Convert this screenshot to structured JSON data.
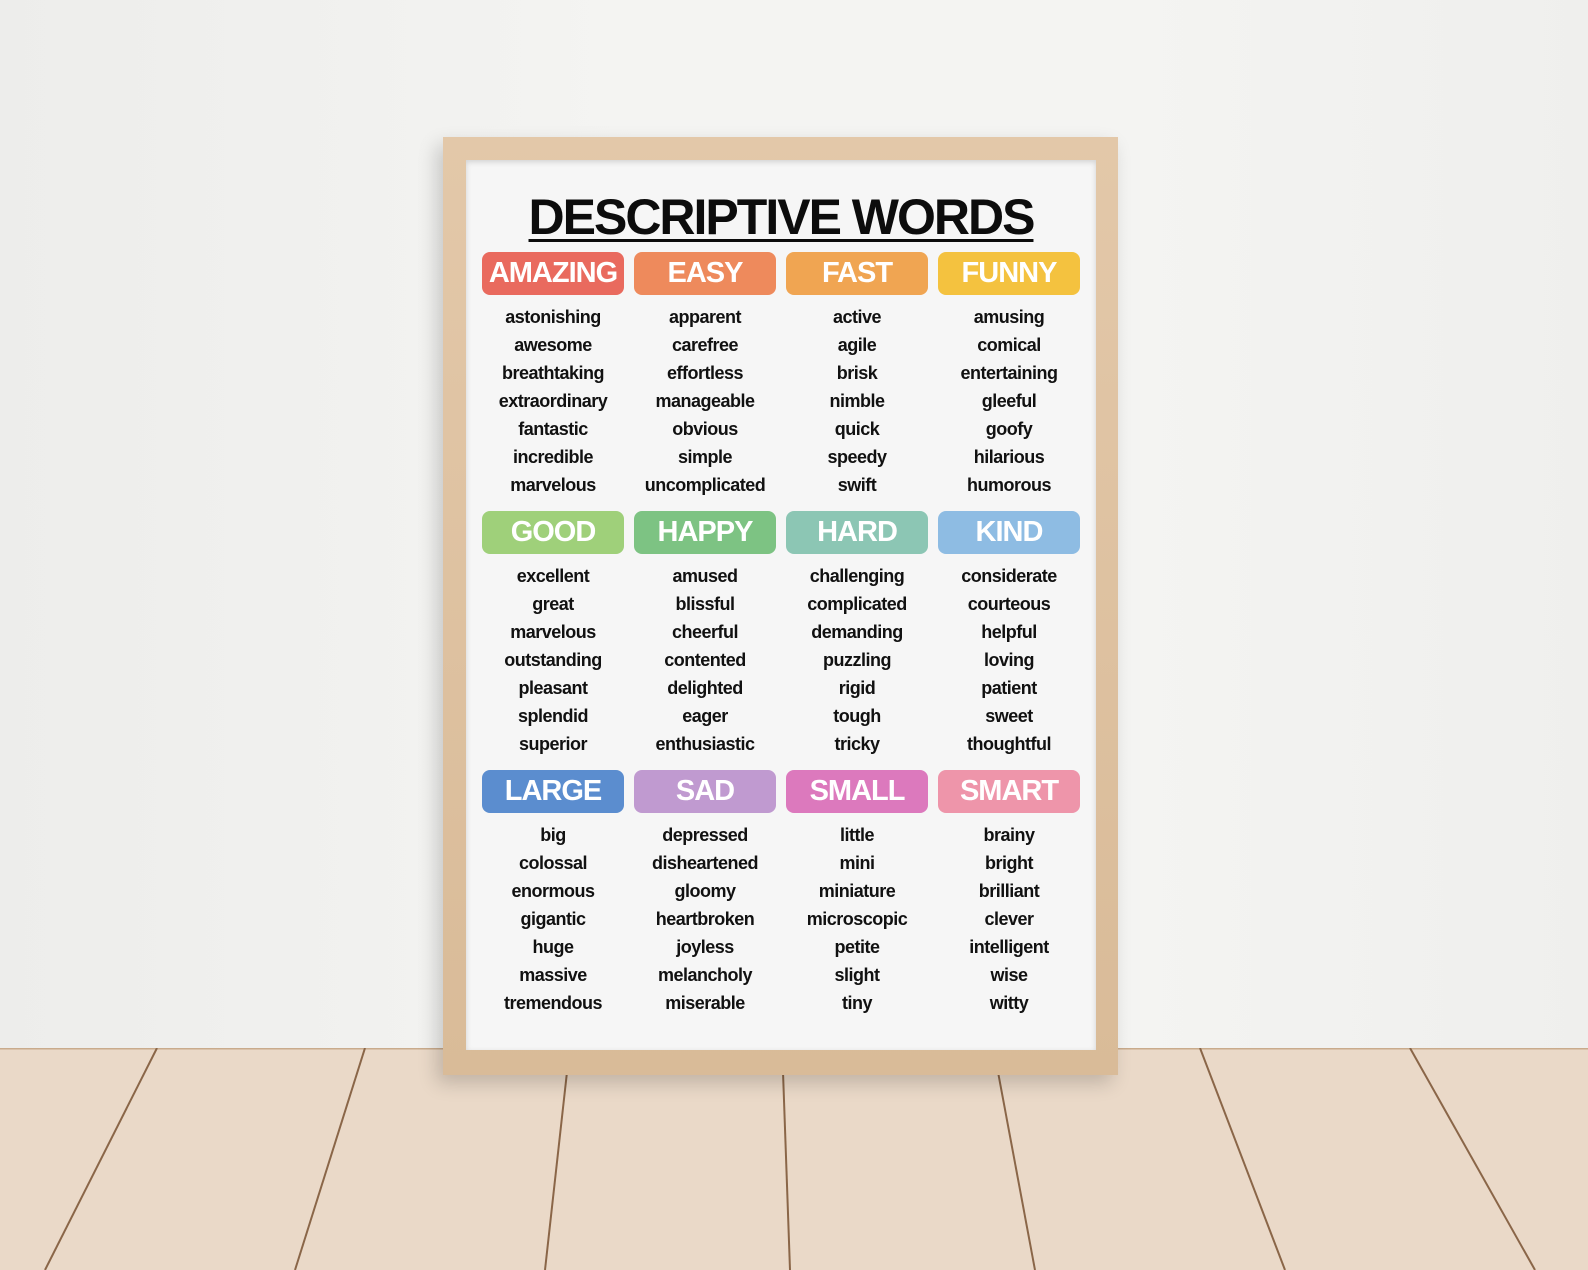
{
  "poster": {
    "title": "DESCRIPTIVE WORDS",
    "categories": [
      {
        "heading": "AMAZING",
        "color": "#e96a5e",
        "words": [
          "astonishing",
          "awesome",
          "breathtaking",
          "extraordinary",
          "fantastic",
          "incredible",
          "marvelous"
        ]
      },
      {
        "heading": "EASY",
        "color": "#ee8a5c",
        "words": [
          "apparent",
          "carefree",
          "effortless",
          "manageable",
          "obvious",
          "simple",
          "uncomplicated"
        ]
      },
      {
        "heading": "FAST",
        "color": "#f0a552",
        "words": [
          "active",
          "agile",
          "brisk",
          "nimble",
          "quick",
          "speedy",
          "swift"
        ]
      },
      {
        "heading": "FUNNY",
        "color": "#f4c23f",
        "words": [
          "amusing",
          "comical",
          "entertaining",
          "gleeful",
          "goofy",
          "hilarious",
          "humorous"
        ]
      },
      {
        "heading": "GOOD",
        "color": "#9fd07a",
        "words": [
          "excellent",
          "great",
          "marvelous",
          "outstanding",
          "pleasant",
          "splendid",
          "superior"
        ]
      },
      {
        "heading": "HAPPY",
        "color": "#7dc383",
        "words": [
          "amused",
          "blissful",
          "cheerful",
          "contented",
          "delighted",
          "eager",
          "enthusiastic"
        ]
      },
      {
        "heading": "HARD",
        "color": "#8cc6b4",
        "words": [
          "challenging",
          "complicated",
          "demanding",
          "puzzling",
          "rigid",
          "tough",
          "tricky"
        ]
      },
      {
        "heading": "KIND",
        "color": "#8ebce3",
        "words": [
          "considerate",
          "courteous",
          "helpful",
          "loving",
          "patient",
          "sweet",
          "thoughtful"
        ]
      },
      {
        "heading": "LARGE",
        "color": "#5b8dcf",
        "words": [
          "big",
          "colossal",
          "enormous",
          "gigantic",
          "huge",
          "massive",
          "tremendous"
        ]
      },
      {
        "heading": "SAD",
        "color": "#c09ad0",
        "words": [
          "depressed",
          "disheartened",
          "gloomy",
          "heartbroken",
          "joyless",
          "melancholy",
          "miserable"
        ]
      },
      {
        "heading": "SMALL",
        "color": "#dc79bd",
        "words": [
          "little",
          "mini",
          "miniature",
          "microscopic",
          "petite",
          "slight",
          "tiny"
        ]
      },
      {
        "heading": "SMART",
        "color": "#ee95aa",
        "words": [
          "brainy",
          "bright",
          "brilliant",
          "clever",
          "intelligent",
          "wise",
          "witty"
        ]
      }
    ]
  }
}
